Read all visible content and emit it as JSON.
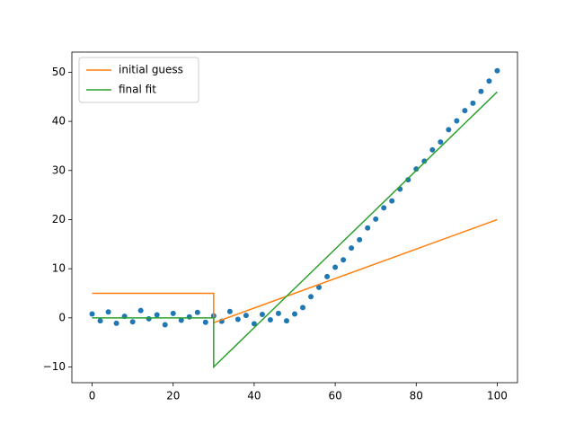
{
  "chart_data": {
    "type": "line",
    "xlim": [
      -5,
      105
    ],
    "xticks": [
      0,
      20,
      40,
      60,
      80,
      100
    ],
    "ylim": [
      -13.2,
      54.1
    ],
    "yticks": [
      {
        "value": -10,
        "label": "−10"
      },
      0,
      10,
      20,
      30,
      40,
      50
    ],
    "legend": "upper left",
    "series": [
      {
        "type": "scatter",
        "color": "#1f77b4",
        "x": [
          0,
          2,
          4,
          6,
          8,
          10,
          12,
          14,
          16,
          18,
          20,
          22,
          24,
          26,
          28,
          30,
          32,
          34,
          36,
          38,
          40,
          42,
          44,
          46,
          48,
          50,
          52,
          54,
          56,
          58,
          60,
          62,
          64,
          66,
          68,
          70,
          72,
          74,
          76,
          78,
          80,
          82,
          84,
          86,
          88,
          90,
          92,
          94,
          96,
          98,
          100
        ],
        "values": [
          0.8,
          -0.6,
          1.2,
          -1.1,
          0.3,
          -0.8,
          1.5,
          -0.2,
          0.6,
          -1.4,
          0.9,
          -0.5,
          0.2,
          1.1,
          -0.9,
          0.4,
          -0.7,
          1.3,
          -0.3,
          0.5,
          -1.2,
          0.7,
          -0.4,
          0.9,
          -0.6,
          0.8,
          2.1,
          4.3,
          6.2,
          8.4,
          10.3,
          11.8,
          14.2,
          15.9,
          18.3,
          20.1,
          22.4,
          23.8,
          26.2,
          28.1,
          30.3,
          31.9,
          34.2,
          35.8,
          38.3,
          40.1,
          42.2,
          43.7,
          46.1,
          48.2,
          50.3
        ]
      },
      {
        "type": "line",
        "name": "initial guess",
        "color": "#ff7f0e",
        "x": [
          0,
          30,
          30,
          100
        ],
        "values": [
          5,
          5,
          -1,
          20
        ]
      },
      {
        "type": "line",
        "name": "final fit",
        "color": "#2ca02c",
        "x": [
          0,
          30,
          30,
          100
        ],
        "values": [
          0,
          0,
          -10,
          46
        ]
      }
    ]
  }
}
